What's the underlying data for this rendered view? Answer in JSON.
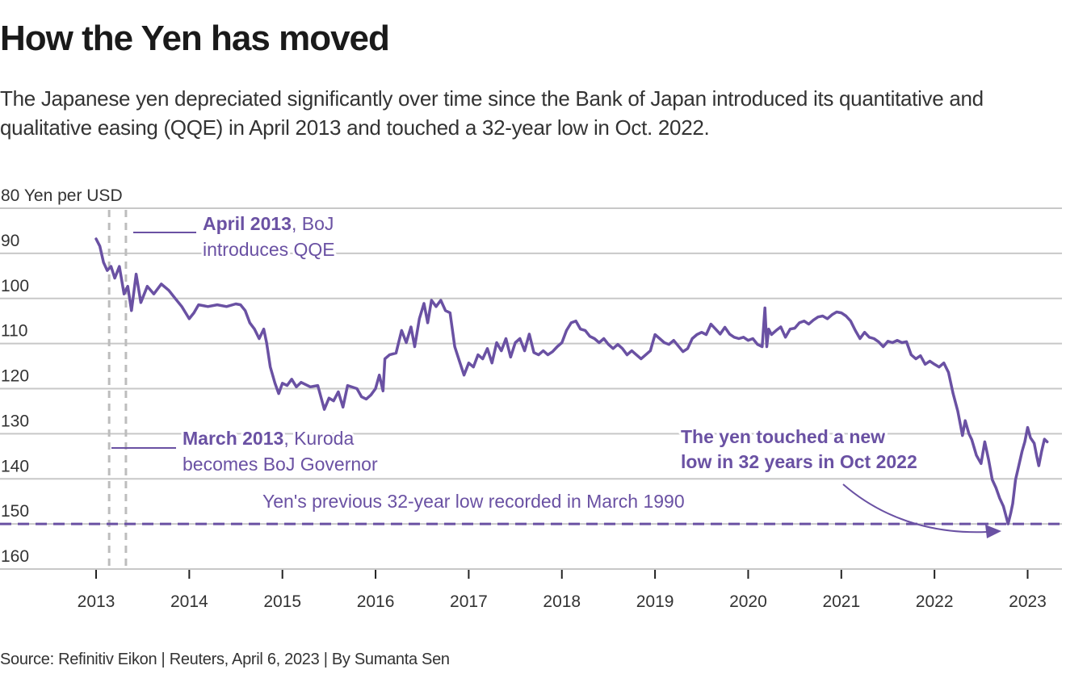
{
  "title": "How the Yen has moved",
  "subtitle": "The Japanese yen depreciated significantly over time since the Bank of Japan introduced its quantitative and qualitative easing (QQE) in April 2013 and touched a 32-year low in Oct. 2022.",
  "source": "Source: Refinitiv Eikon | Reuters, April 6, 2023 | By Sumanta Sen",
  "colors": {
    "line": "#6a51a3",
    "grid": "#c8c8c8",
    "event": "#bdbdbd",
    "text": "#333333"
  },
  "chart_data": {
    "type": "line",
    "title": "How the Yen has moved",
    "ylabel": "Yen per USD",
    "y_unit_label": "Yen per USD",
    "ylim": [
      80,
      160
    ],
    "y_inverted": true,
    "yticks": [
      80,
      90,
      100,
      110,
      120,
      130,
      140,
      150,
      160
    ],
    "xlim": [
      2012.9,
      2023.3
    ],
    "xticks": [
      2013,
      2014,
      2015,
      2016,
      2017,
      2018,
      2019,
      2020,
      2021,
      2022,
      2023
    ],
    "grid": true,
    "series": [
      {
        "name": "Yen per USD",
        "x": [
          2013.0,
          2013.04,
          2013.08,
          2013.12,
          2013.16,
          2013.2,
          2013.25,
          2013.3,
          2013.34,
          2013.38,
          2013.43,
          2013.48,
          2013.55,
          2013.62,
          2013.7,
          2013.78,
          2013.85,
          2013.92,
          2014.0,
          2014.05,
          2014.1,
          2014.2,
          2014.3,
          2014.4,
          2014.5,
          2014.55,
          2014.6,
          2014.65,
          2014.7,
          2014.75,
          2014.8,
          2014.83,
          2014.87,
          2014.92,
          2014.96,
          2015.0,
          2015.05,
          2015.1,
          2015.15,
          2015.2,
          2015.3,
          2015.38,
          2015.42,
          2015.45,
          2015.5,
          2015.55,
          2015.6,
          2015.65,
          2015.7,
          2015.8,
          2015.85,
          2015.9,
          2015.95,
          2016.0,
          2016.04,
          2016.08,
          2016.1,
          2016.15,
          2016.22,
          2016.28,
          2016.33,
          2016.38,
          2016.42,
          2016.47,
          2016.52,
          2016.56,
          2016.6,
          2016.65,
          2016.7,
          2016.75,
          2016.8,
          2016.85,
          2016.9,
          2016.95,
          2017.0,
          2017.05,
          2017.1,
          2017.15,
          2017.2,
          2017.25,
          2017.3,
          2017.35,
          2017.4,
          2017.45,
          2017.5,
          2017.55,
          2017.6,
          2017.65,
          2017.7,
          2017.75,
          2017.8,
          2017.85,
          2017.9,
          2017.95,
          2018.0,
          2018.05,
          2018.1,
          2018.15,
          2018.2,
          2018.25,
          2018.3,
          2018.35,
          2018.4,
          2018.45,
          2018.5,
          2018.55,
          2018.6,
          2018.65,
          2018.7,
          2018.75,
          2018.8,
          2018.85,
          2018.9,
          2018.95,
          2019.0,
          2019.05,
          2019.1,
          2019.15,
          2019.2,
          2019.3,
          2019.35,
          2019.4,
          2019.45,
          2019.5,
          2019.55,
          2019.6,
          2019.65,
          2019.7,
          2019.75,
          2019.8,
          2019.85,
          2019.9,
          2019.95,
          2020.0,
          2020.05,
          2020.1,
          2020.15,
          2020.18,
          2020.2,
          2020.22,
          2020.25,
          2020.3,
          2020.35,
          2020.4,
          2020.45,
          2020.5,
          2020.55,
          2020.6,
          2020.65,
          2020.7,
          2020.75,
          2020.8,
          2020.85,
          2020.9,
          2020.95,
          2021.0,
          2021.05,
          2021.1,
          2021.15,
          2021.2,
          2021.25,
          2021.3,
          2021.35,
          2021.4,
          2021.45,
          2021.5,
          2021.55,
          2021.6,
          2021.65,
          2021.7,
          2021.75,
          2021.8,
          2021.85,
          2021.9,
          2021.95,
          2022.0,
          2022.05,
          2022.1,
          2022.15,
          2022.2,
          2022.25,
          2022.3,
          2022.33,
          2022.37,
          2022.4,
          2022.45,
          2022.5,
          2022.54,
          2022.58,
          2022.62,
          2022.66,
          2022.7,
          2022.74,
          2022.79,
          2022.82,
          2022.84,
          2022.87,
          2022.9,
          2022.94,
          2022.97,
          2023.0,
          2023.03,
          2023.07,
          2023.1,
          2023.12,
          2023.15,
          2023.18,
          2023.21
        ],
        "values": [
          86.8,
          88.4,
          92.0,
          93.8,
          92.9,
          95.5,
          92.9,
          99.0,
          97.3,
          102.7,
          94.6,
          100.9,
          97.3,
          99.0,
          96.8,
          98.2,
          100.0,
          101.8,
          104.5,
          103.2,
          101.4,
          101.8,
          101.4,
          101.8,
          101.2,
          101.4,
          102.7,
          105.4,
          106.8,
          108.9,
          106.8,
          109.8,
          115.2,
          118.8,
          121.1,
          118.8,
          119.3,
          117.9,
          119.6,
          118.6,
          119.6,
          119.3,
          122.3,
          124.6,
          122.1,
          122.7,
          120.7,
          124.1,
          119.3,
          120.0,
          121.8,
          122.3,
          121.4,
          120.0,
          117.0,
          120.5,
          113.4,
          112.5,
          112.1,
          107.1,
          109.8,
          106.3,
          110.7,
          104.5,
          101.1,
          105.4,
          100.4,
          101.8,
          100.4,
          102.7,
          103.2,
          110.7,
          113.9,
          117.0,
          114.3,
          115.2,
          112.5,
          113.4,
          111.1,
          114.3,
          109.8,
          111.6,
          108.9,
          113.0,
          109.8,
          108.9,
          111.6,
          107.9,
          112.0,
          112.5,
          111.6,
          112.5,
          111.8,
          110.7,
          109.8,
          107.1,
          105.4,
          105.0,
          106.8,
          107.1,
          108.4,
          108.9,
          109.8,
          108.9,
          110.2,
          111.1,
          110.2,
          111.1,
          112.5,
          111.6,
          112.5,
          113.4,
          112.5,
          111.6,
          108.0,
          108.9,
          109.8,
          110.2,
          109.3,
          111.8,
          111.1,
          108.9,
          108.0,
          107.5,
          108.0,
          105.7,
          106.8,
          107.9,
          106.4,
          107.9,
          108.6,
          108.9,
          108.6,
          109.3,
          108.9,
          110.2,
          110.7,
          102.1,
          110.7,
          106.8,
          108.0,
          107.1,
          106.3,
          108.6,
          106.8,
          106.6,
          105.4,
          105.0,
          105.7,
          104.8,
          104.1,
          103.9,
          104.5,
          103.6,
          103.0,
          103.2,
          103.9,
          105.0,
          107.1,
          108.9,
          107.5,
          108.6,
          108.9,
          109.6,
          110.7,
          109.5,
          109.8,
          109.3,
          109.8,
          109.6,
          112.5,
          113.4,
          112.7,
          114.6,
          113.9,
          114.6,
          115.2,
          114.3,
          116.4,
          121.1,
          125.0,
          130.4,
          127.1,
          130.0,
          131.3,
          134.8,
          136.6,
          131.8,
          135.7,
          140.2,
          142.0,
          144.3,
          146.1,
          151.9,
          147.5,
          145.5,
          140.2,
          137.5,
          133.9,
          131.8,
          128.6,
          130.9,
          132.1,
          135.2,
          137.1,
          133.9,
          131.2,
          131.8
        ]
      }
    ],
    "reference_lines": [
      {
        "type": "horizontal",
        "value": 151.9,
        "style": "dashed",
        "label": "Yen's previous 32-year low recorded in March 1990"
      },
      {
        "type": "vertical",
        "x": 2013.14,
        "style": "dashed",
        "label_bold": "March 2013",
        "label_rest": ", Kuroda",
        "label_line2": "becomes BoJ Governor"
      },
      {
        "type": "vertical",
        "x": 2013.32,
        "style": "dashed",
        "label_bold": "April 2013",
        "label_rest": ", BoJ",
        "label_line2": "introduces QQE"
      }
    ],
    "annotations": [
      {
        "text_line1": "The yen touched a new",
        "text_line2": "low in 32 years in Oct 2022",
        "points_to": {
          "x": 2022.79,
          "y": 151.9
        }
      }
    ]
  }
}
